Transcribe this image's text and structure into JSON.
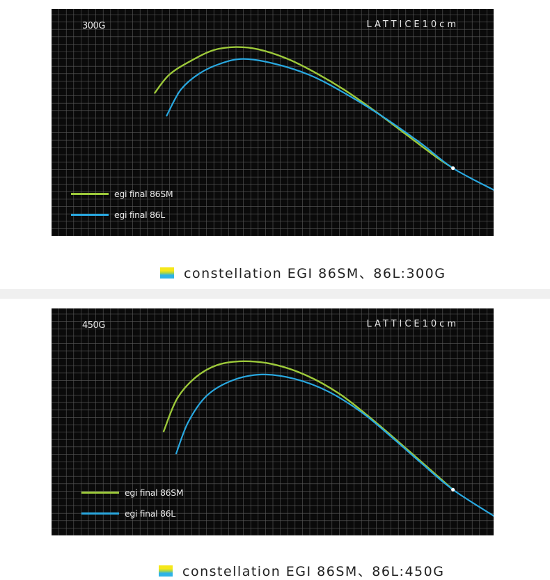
{
  "chart_data": [
    {
      "type": "line",
      "title": "300G",
      "annotation": "LATTICE10cm",
      "grid": true,
      "legend_position": "bottom-left",
      "caption": "constellation EGI 86SM、86L:300G",
      "series": [
        {
          "name": "egi final 86SM",
          "color": "#9dc93a",
          "points": [
            [
              14,
              19.4
            ],
            [
              16,
              21.9
            ],
            [
              19,
              23.8
            ],
            [
              22,
              25.2
            ],
            [
              25,
              25.6
            ],
            [
              28,
              25.3
            ],
            [
              32,
              24
            ],
            [
              36,
              22
            ],
            [
              40,
              19.6
            ],
            [
              44,
              16.8
            ],
            [
              48,
              13.8
            ],
            [
              52,
              10.8
            ],
            [
              54.4,
              9.2
            ]
          ]
        },
        {
          "name": "egi final 86L",
          "color": "#29a8e0",
          "points": [
            [
              15.6,
              16.3
            ],
            [
              17.5,
              19.8
            ],
            [
              20,
              22
            ],
            [
              23,
              23.4
            ],
            [
              26,
              24
            ],
            [
              30,
              23.4
            ],
            [
              35,
              21.8
            ],
            [
              40,
              19.2
            ],
            [
              45,
              16.1
            ],
            [
              50,
              12.6
            ],
            [
              54.4,
              9.2
            ],
            [
              60,
              6.2
            ]
          ]
        }
      ],
      "tip_marker": [
        54.4,
        9.2
      ]
    },
    {
      "type": "line",
      "title": "450G",
      "annotation": "LATTICE10cm",
      "grid": true,
      "legend_position": "bottom-left",
      "caption": "constellation EGI 86SM、86L:450G",
      "series": [
        {
          "name": "egi final 86SM",
          "color": "#9dc93a",
          "points": [
            [
              15.2,
              14.1
            ],
            [
              17,
              18.5
            ],
            [
              19.5,
              21.4
            ],
            [
              22.5,
              23.1
            ],
            [
              26,
              23.6
            ],
            [
              30,
              23.2
            ],
            [
              34.5,
              21.7
            ],
            [
              39,
              19.2
            ],
            [
              43,
              16.1
            ],
            [
              47,
              12.7
            ],
            [
              51,
              9.2
            ],
            [
              54.4,
              6.2
            ]
          ]
        },
        {
          "name": "egi final 86L",
          "color": "#29a8e0",
          "points": [
            [
              16.9,
              11.1
            ],
            [
              18.5,
              15.3
            ],
            [
              21,
              18.9
            ],
            [
              24.5,
              21
            ],
            [
              28.5,
              21.8
            ],
            [
              33,
              21.2
            ],
            [
              37.5,
              19.5
            ],
            [
              42,
              16.7
            ],
            [
              46,
              13.4
            ],
            [
              50,
              9.9
            ],
            [
              54.4,
              6.2
            ],
            [
              60,
              2.6
            ]
          ]
        }
      ],
      "tip_marker": [
        54.4,
        6.2
      ]
    }
  ]
}
